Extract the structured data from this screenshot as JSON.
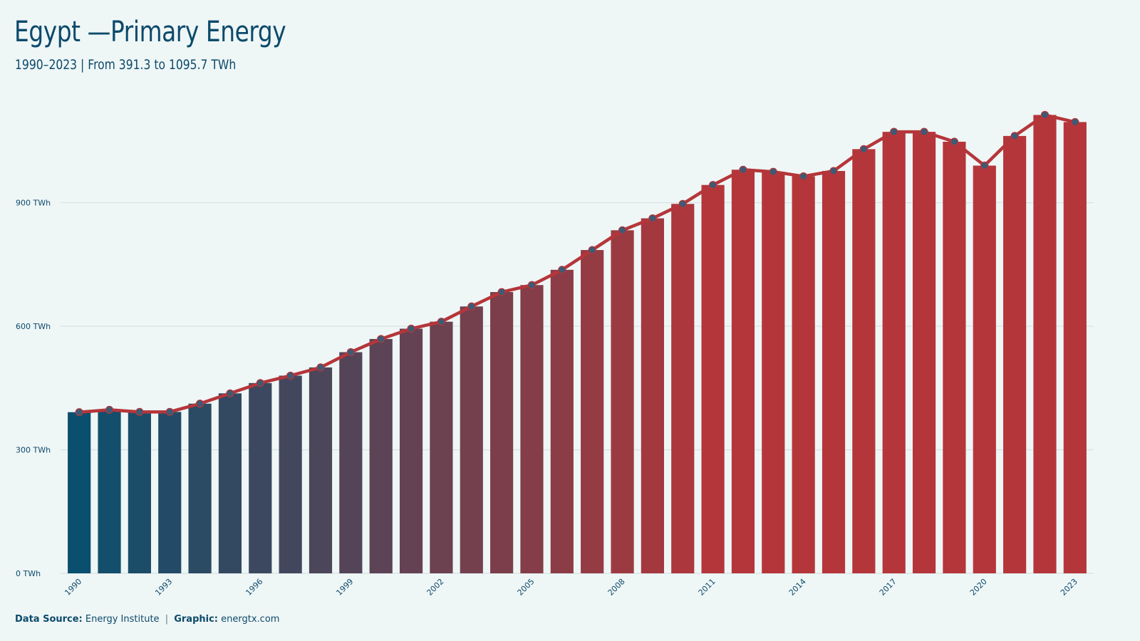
{
  "header": {
    "title": "Egypt —Primary Energy",
    "subtitle": "1990–2023 | From 391.3 to 1095.7 TWh"
  },
  "footer": {
    "source_label": "Data Source:",
    "source_value": "Energy Institute",
    "separator": "|",
    "graphic_label": "Graphic:",
    "graphic_value": "energtx.com"
  },
  "colors": {
    "bar_start": "#0b4f6e",
    "bar_end": "#b5363a",
    "line": "#b5363a",
    "marker": "#3e5a74",
    "grid": "#d5e3e3",
    "axis_text": "#0b4a6b"
  },
  "chart_data": {
    "type": "bar",
    "overlay": "line",
    "title": "Egypt —Primary Energy",
    "subtitle": "1990–2023 | From 391.3 to 1095.7 TWh",
    "xlabel": "",
    "ylabel": "",
    "unit": "TWh",
    "ylim": [
      0,
      1150
    ],
    "yticks": [
      0,
      300,
      600,
      900
    ],
    "ytick_labels": [
      "0 TWh",
      "300 TWh",
      "600 TWh",
      "900 TWh"
    ],
    "grid": true,
    "legend": "none",
    "x": [
      1990,
      1991,
      1992,
      1993,
      1994,
      1995,
      1996,
      1997,
      1998,
      1999,
      2000,
      2001,
      2002,
      2003,
      2004,
      2005,
      2006,
      2007,
      2008,
      2009,
      2010,
      2011,
      2012,
      2013,
      2014,
      2015,
      2016,
      2017,
      2018,
      2019,
      2020,
      2021,
      2022,
      2023
    ],
    "xtick_labels": [
      "1990",
      "1993",
      "1996",
      "1999",
      "2002",
      "2005",
      "2008",
      "2011",
      "2014",
      "2017",
      "2020",
      "2023"
    ],
    "values": [
      391.3,
      397,
      392,
      392,
      412,
      437,
      462,
      480,
      500,
      537,
      569,
      594,
      611,
      648,
      683,
      700,
      737,
      785,
      833,
      862,
      897,
      943,
      980,
      975,
      964,
      977,
      1030,
      1072,
      1072,
      1048,
      990,
      1062,
      1113,
      1095.7
    ]
  }
}
